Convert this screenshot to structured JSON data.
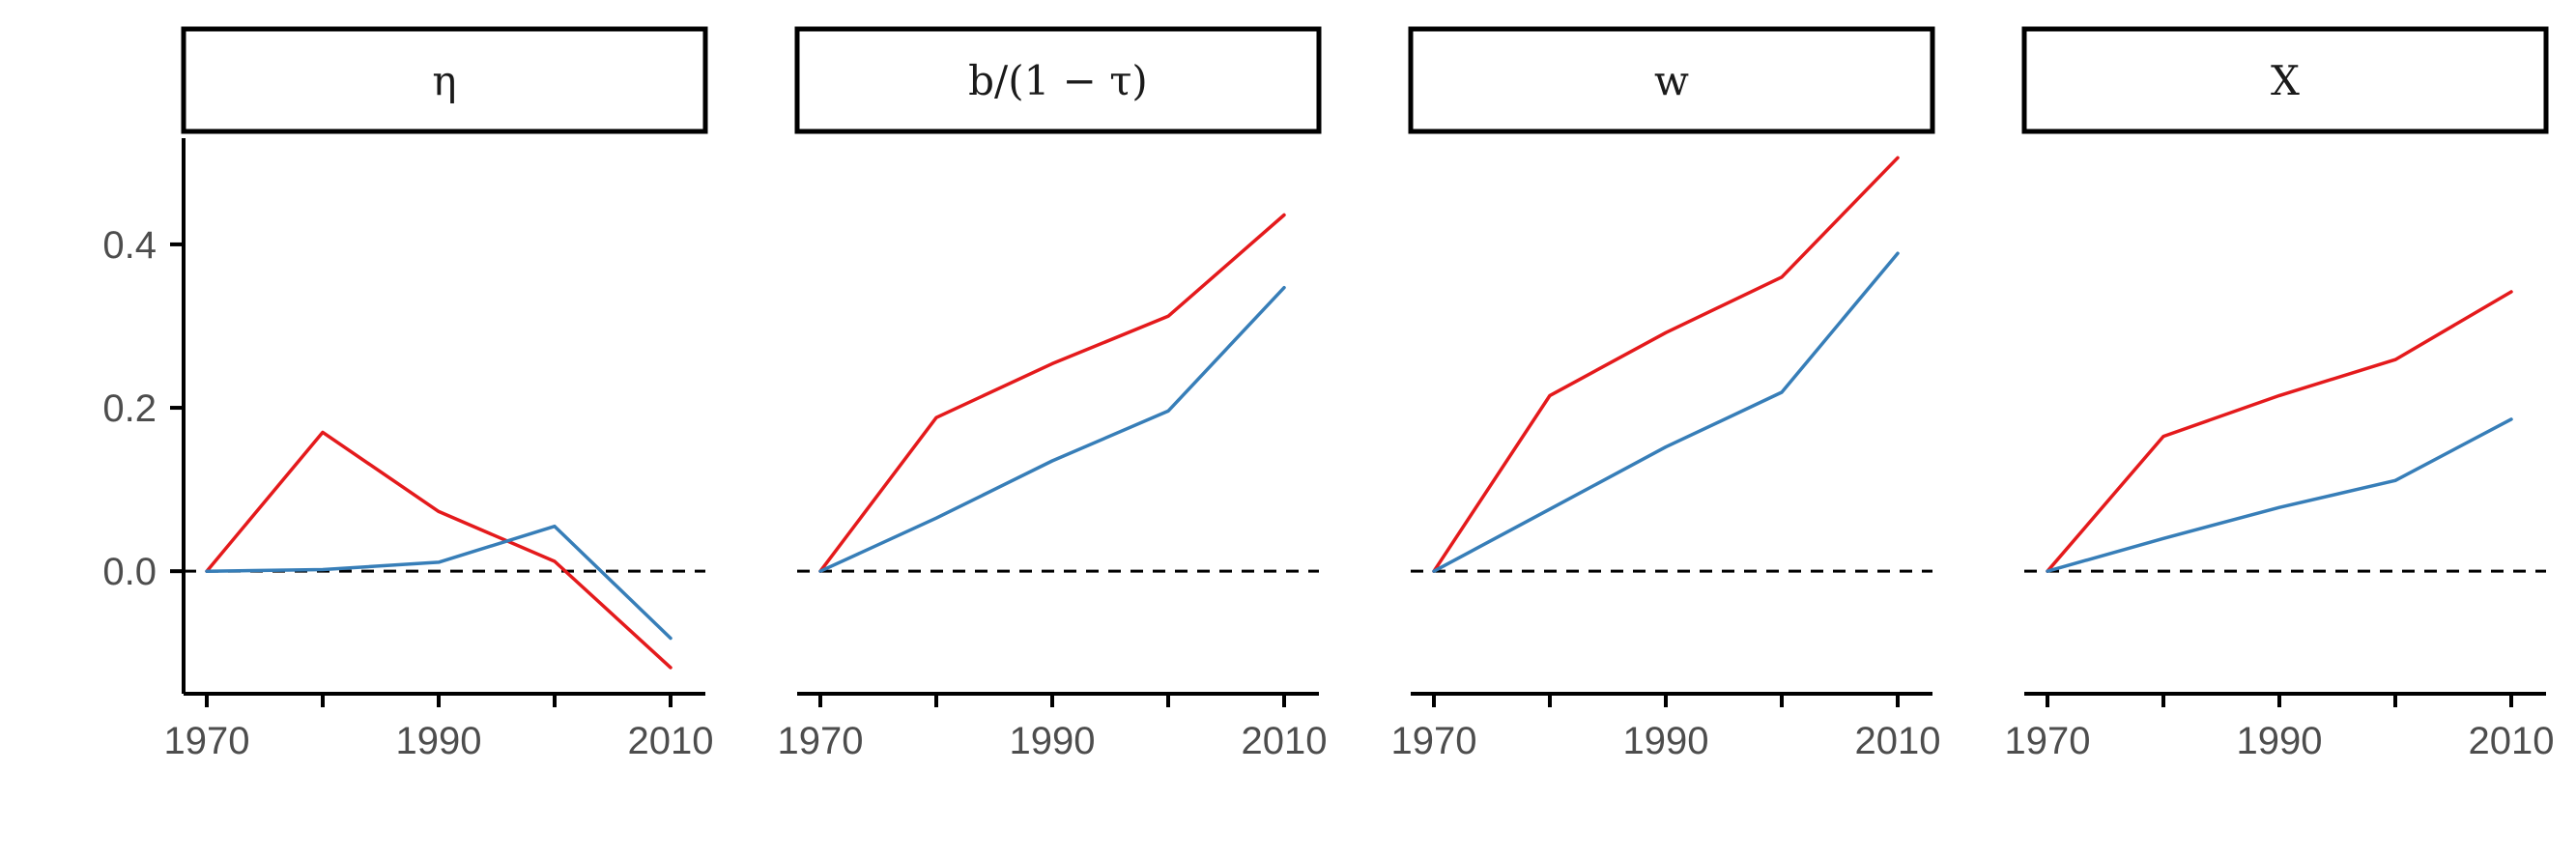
{
  "chart_data": {
    "type": "line",
    "panels": [
      {
        "label": "η",
        "x": [
          1970,
          1980,
          1990,
          2000,
          2010
        ],
        "series": [
          {
            "color": "#E41A1C",
            "values": [
              0.0,
              0.17,
              0.073,
              0.012,
              -0.118
            ]
          },
          {
            "color": "#377EB8",
            "values": [
              0.0,
              0.002,
              0.011,
              0.055,
              -0.082
            ]
          }
        ]
      },
      {
        "label": "b/(1 − τ)",
        "x": [
          1970,
          1980,
          1990,
          2000,
          2010
        ],
        "series": [
          {
            "color": "#E41A1C",
            "values": [
              0.0,
              0.188,
              0.254,
              0.312,
              0.436
            ]
          },
          {
            "color": "#377EB8",
            "values": [
              0.0,
              0.065,
              0.135,
              0.196,
              0.347
            ]
          }
        ]
      },
      {
        "label": "w",
        "x": [
          1970,
          1980,
          1990,
          2000,
          2010
        ],
        "series": [
          {
            "color": "#E41A1C",
            "values": [
              0.0,
              0.215,
              0.292,
              0.36,
              0.506
            ]
          },
          {
            "color": "#377EB8",
            "values": [
              0.0,
              0.076,
              0.152,
              0.219,
              0.389
            ]
          }
        ]
      },
      {
        "label": "X",
        "x": [
          1970,
          1980,
          1990,
          2000,
          2010
        ],
        "series": [
          {
            "color": "#E41A1C",
            "values": [
              0.0,
              0.165,
              0.215,
              0.259,
              0.342
            ]
          },
          {
            "color": "#377EB8",
            "values": [
              0.0,
              0.04,
              0.078,
              0.111,
              0.186
            ]
          }
        ]
      }
    ],
    "xlim": [
      1968,
      2013
    ],
    "xticks": [
      1970,
      1980,
      1990,
      2000,
      2010
    ],
    "xtick_labels": [
      "1970",
      "1990",
      "2010"
    ],
    "ylim": [
      -0.15,
      0.53
    ],
    "yticks": [
      0.0,
      0.2,
      0.4
    ],
    "ytick_labels": [
      "0.0",
      "0.2",
      "0.4"
    ],
    "reference_line": {
      "y": 0,
      "style": "dashed"
    },
    "grid": false,
    "legend": "none"
  }
}
